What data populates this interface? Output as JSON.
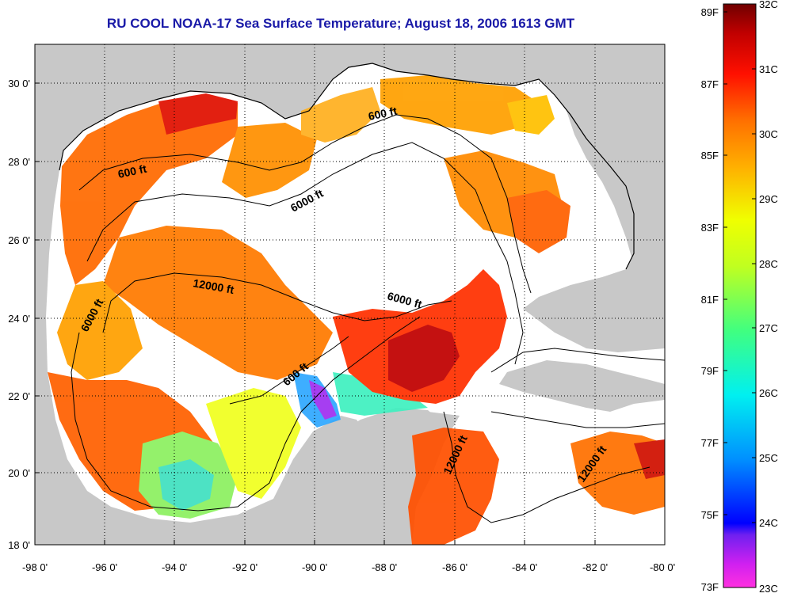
{
  "title": "RU COOL  NOAA-17  Sea Surface Temperature;  August 18, 2006 1613 GMT",
  "map": {
    "lon_ticks": [
      "-98 0'",
      "-96 0'",
      "-94 0'",
      "-92 0'",
      "-90 0'",
      "-88 0'",
      "-86 0'",
      "-84 0'",
      "-82 0'",
      "-80 0'"
    ],
    "lat_ticks": [
      "30 0'",
      "28 0'",
      "26 0'",
      "24 0'",
      "22 0'",
      "20 0'",
      "18 0'"
    ],
    "lon_range": [
      -98,
      -80
    ],
    "lat_range": [
      18,
      31.4
    ],
    "land_color": "#c8c8c8",
    "cloud_color": "#ffffff",
    "contour_labels": [
      "600 ft",
      "600 ft",
      "600 ft",
      "6000 ft",
      "6000 ft",
      "6000 ft",
      "12000 ft",
      "12000 ft",
      "12000 ft"
    ]
  },
  "colorbar": {
    "fahrenheit_labels": [
      "89F",
      "87F",
      "85F",
      "83F",
      "81F",
      "79F",
      "77F",
      "75F",
      "73F"
    ],
    "celsius_labels": [
      "32C",
      "31C",
      "30C",
      "29C",
      "28C",
      "27C",
      "26C",
      "25C",
      "24C",
      "23C"
    ],
    "range_c": [
      23,
      32
    ],
    "colors": [
      "#ff30e0",
      "#a020f0",
      "#0000ff",
      "#0090ff",
      "#00f0f0",
      "#00ff90",
      "#90ff20",
      "#f0ff00",
      "#ffc000",
      "#ff8000",
      "#ff4000",
      "#ff0000",
      "#b00000",
      "#7a0000"
    ]
  }
}
